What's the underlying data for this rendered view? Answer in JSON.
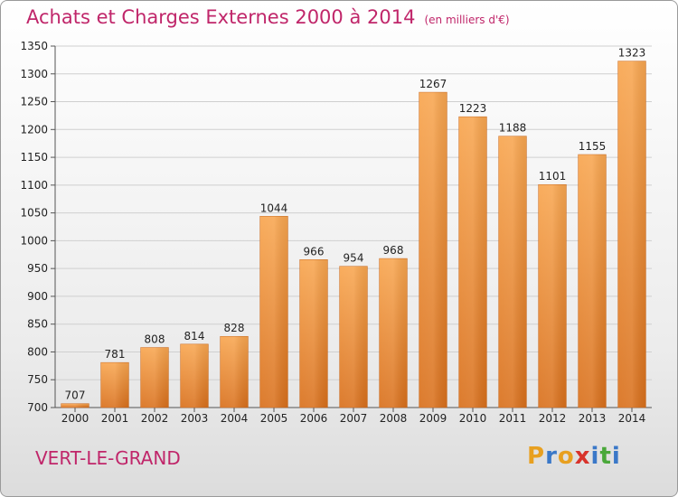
{
  "title": "Achats et Charges Externes 2000 à 2014",
  "subtitle": "(en milliers d'€)",
  "location": "VERT-LE-GRAND",
  "logo": {
    "letters": [
      "P",
      "r",
      "o",
      "x",
      "i",
      "t",
      "i"
    ],
    "colors": [
      "#e8a020",
      "#3a78c8",
      "#e8a020",
      "#d8332b",
      "#3a78c8",
      "#4aa83a",
      "#3a78c8"
    ]
  },
  "colors": {
    "bar_top": "#f8a650",
    "bar_bottom": "#d9701c",
    "accent": "#c0266a",
    "grid": "#cfcfcf"
  },
  "chart_data": {
    "type": "bar",
    "title": "Achats et Charges Externes 2000 à 2014",
    "subtitle": "(en milliers d'€)",
    "categories": [
      "2000",
      "2001",
      "2002",
      "2003",
      "2004",
      "2005",
      "2006",
      "2007",
      "2008",
      "2009",
      "2010",
      "2011",
      "2012",
      "2013",
      "2014"
    ],
    "values": [
      707,
      781,
      808,
      814,
      828,
      1044,
      966,
      954,
      968,
      1267,
      1223,
      1188,
      1101,
      1155,
      1323
    ],
    "ylim": [
      700,
      1350
    ],
    "yticks": [
      700,
      750,
      800,
      850,
      900,
      950,
      1000,
      1050,
      1100,
      1150,
      1200,
      1250,
      1300,
      1350
    ],
    "grid": true,
    "xlabel": "",
    "ylabel": ""
  }
}
